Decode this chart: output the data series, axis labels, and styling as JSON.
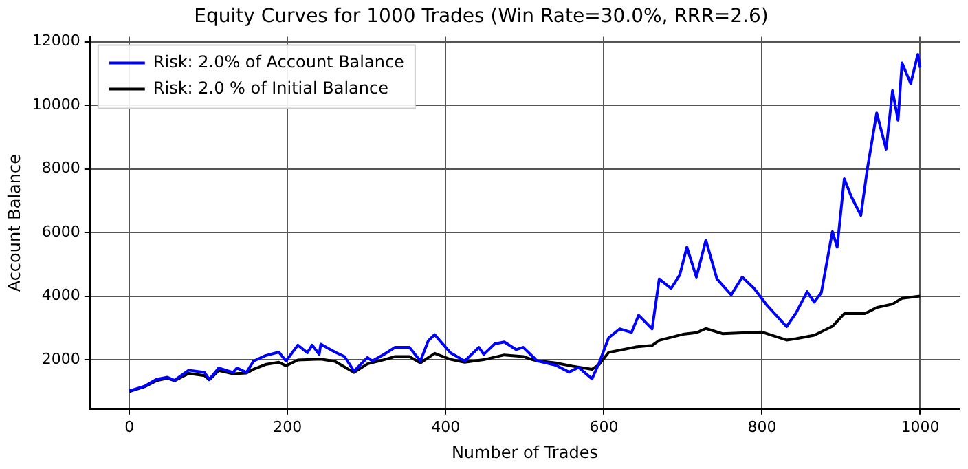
{
  "chart_data": {
    "type": "line",
    "title": "Equity Curves for 1000 Trades (Win Rate=30.0%, RRR=2.6)",
    "xlabel": "Number of Trades",
    "ylabel": "Account Balance",
    "xlim": [
      -50,
      1050
    ],
    "xticks": [
      0,
      200,
      400,
      600,
      800,
      1000
    ],
    "ylim": [
      450,
      12150
    ],
    "yticks": [
      2000,
      4000,
      6000,
      8000,
      10000,
      12000
    ],
    "grid": true,
    "legend": "top left",
    "marker": "none",
    "line_style": "solid",
    "series": [
      {
        "name": "Risk: 2.0% of Account Balance",
        "color": "#0000ff",
        "x": [
          0,
          19,
          34,
          48,
          57,
          75,
          95,
          101,
          113,
          131,
          136,
          148,
          157,
          172,
          189,
          198,
          213,
          225,
          231,
          240,
          242,
          260,
          272,
          284,
          301,
          307,
          322,
          336,
          354,
          368,
          378,
          386,
          395,
          406,
          424,
          442,
          448,
          462,
          474,
          489,
          498,
          510,
          515,
          539,
          556,
          568,
          585,
          594,
          606,
          620,
          635,
          644,
          661,
          670,
          685,
          696,
          705,
          717,
          729,
          743,
          761,
          775,
          790,
          807,
          831,
          843,
          857,
          866,
          875,
          889,
          895,
          904,
          913,
          925,
          933,
          945,
          957,
          965,
          972,
          977,
          988,
          997,
          1000
        ],
        "values": [
          1020,
          1165,
          1380,
          1450,
          1350,
          1670,
          1600,
          1380,
          1740,
          1600,
          1740,
          1600,
          1960,
          2130,
          2240,
          1960,
          2460,
          2220,
          2460,
          2170,
          2490,
          2240,
          2100,
          1640,
          2070,
          1960,
          2170,
          2390,
          2390,
          1960,
          2600,
          2790,
          2530,
          2220,
          1960,
          2390,
          2170,
          2500,
          2560,
          2320,
          2390,
          2100,
          1970,
          1830,
          1610,
          1760,
          1400,
          1900,
          2690,
          2970,
          2860,
          3400,
          2970,
          4540,
          4240,
          4670,
          5540,
          4600,
          5760,
          4540,
          4040,
          4600,
          4240,
          3690,
          3040,
          3470,
          4140,
          3810,
          4110,
          6030,
          5540,
          7690,
          7120,
          6540,
          7970,
          9760,
          8620,
          10460,
          9530,
          11330,
          10680,
          11600,
          11180
        ]
      },
      {
        "name": "Risk: 2.0 % of Initial Balance",
        "color": "#000000",
        "x": [
          0,
          19,
          34,
          48,
          57,
          75,
          95,
          101,
          113,
          131,
          148,
          157,
          172,
          189,
          198,
          213,
          231,
          242,
          260,
          284,
          301,
          322,
          336,
          354,
          368,
          386,
          406,
          424,
          448,
          474,
          498,
          510,
          515,
          539,
          560,
          585,
          594,
          606,
          640,
          661,
          670,
          700,
          717,
          729,
          750,
          800,
          831,
          843,
          866,
          889,
          904,
          930,
          945,
          965,
          977,
          1000
        ],
        "values": [
          1000,
          1150,
          1340,
          1420,
          1340,
          1570,
          1500,
          1370,
          1660,
          1560,
          1580,
          1700,
          1850,
          1920,
          1810,
          1990,
          2010,
          2020,
          1950,
          1600,
          1870,
          2000,
          2100,
          2100,
          1900,
          2200,
          2010,
          1920,
          2000,
          2150,
          2100,
          2000,
          1970,
          1900,
          1800,
          1700,
          1850,
          2230,
          2400,
          2450,
          2610,
          2800,
          2850,
          2980,
          2820,
          2870,
          2620,
          2660,
          2770,
          3050,
          3450,
          3450,
          3640,
          3750,
          3930,
          4000
        ]
      }
    ]
  }
}
